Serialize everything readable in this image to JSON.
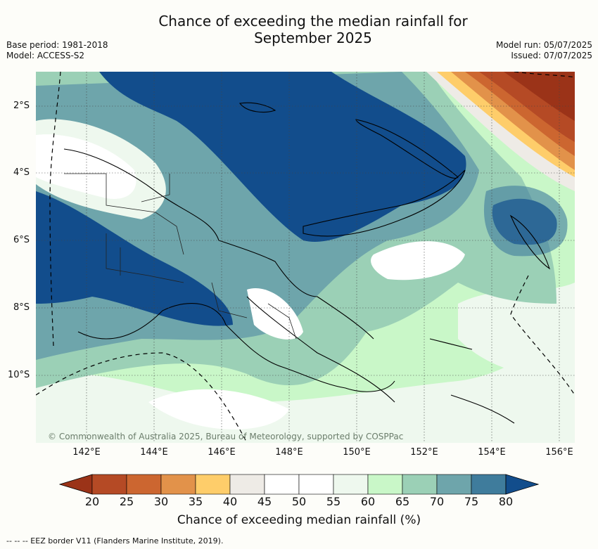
{
  "title_line1": "Chance of exceeding the median rainfall for",
  "title_line2": "September 2025",
  "base_period": "Base period: 1981-2018",
  "model": "Model: ACCESS-S2",
  "model_run": "Model run: 05/07/2025",
  "issued": "Issued: 07/07/2025",
  "lat_labels": [
    "2°S",
    "4°S",
    "6°S",
    "8°S",
    "10°S"
  ],
  "lon_labels": [
    "142°E",
    "144°E",
    "146°E",
    "148°E",
    "150°E",
    "152°E",
    "154°E",
    "156°E"
  ],
  "credit": "© Commonwealth of Australia 2025, Bureau of Meteorology, supported by COSPPac",
  "colorbar": {
    "ticks": [
      "20",
      "25",
      "30",
      "35",
      "40",
      "45",
      "50",
      "55",
      "60",
      "65",
      "70",
      "75",
      "80"
    ],
    "colors": [
      "#9b3318",
      "#b54a25",
      "#cc6630",
      "#e2924a",
      "#fecd6a",
      "#eeebe6",
      "#ffffff",
      "#ffffff",
      "#eef8ee",
      "#c9f7c8",
      "#9bd0b6",
      "#6ea5ab",
      "#3f7c9c",
      "#124d8c"
    ],
    "label": "Chance of exceeding median rainfall (%)"
  },
  "footer": "--  --  -- EEZ border V11 (Flanders Marine Institute, 2019)."
}
